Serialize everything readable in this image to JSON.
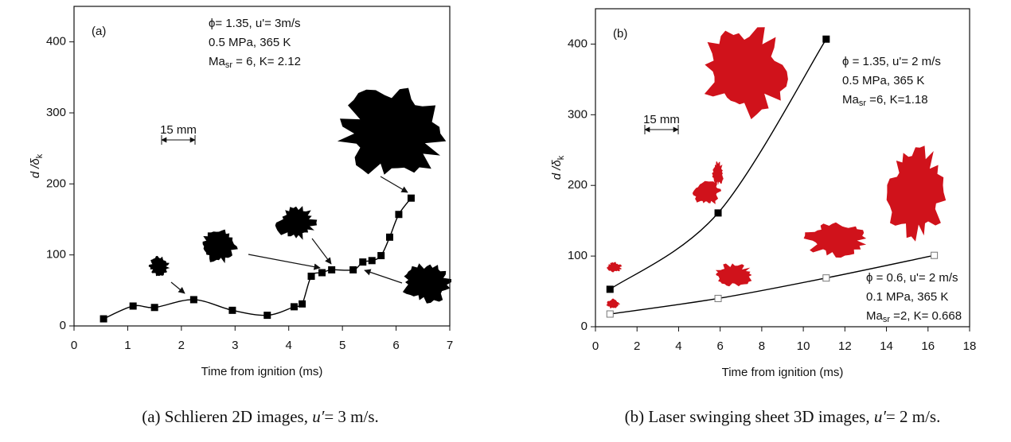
{
  "chart_data": [
    {
      "type": "line",
      "panel_label": "(a)",
      "xlabel": "Time from ignition (ms)",
      "ylabel": {
        "main": "d /δ",
        "sub": "k"
      },
      "xlim": [
        0,
        7
      ],
      "ylim": [
        0,
        450
      ],
      "xticks": [
        0,
        1,
        2,
        3,
        4,
        5,
        6,
        7
      ],
      "yticks": [
        0,
        100,
        200,
        300,
        400
      ],
      "x": [
        0.55,
        1.1,
        1.5,
        2.23,
        2.95,
        3.6,
        4.1,
        4.25,
        4.42,
        4.62,
        4.8,
        5.2,
        5.38,
        5.55,
        5.72,
        5.88,
        6.05,
        6.28
      ],
      "series": [
        {
          "color": "#000000",
          "marker": "filled-square",
          "values": [
            10,
            28,
            26,
            37,
            22,
            15,
            27,
            31,
            70,
            75,
            79,
            79,
            90,
            92,
            99,
            125,
            157,
            180
          ]
        }
      ],
      "scale_bar": "15 mm",
      "annotations": [
        {
          "lines": [
            "ϕ= 1.35, u'= 3m/s",
            "0.5 MPa, 365 K"
          ],
          "ma": {
            "base": "Ma",
            "sub": "sr",
            "rest": " = 6, K= 2.12"
          }
        }
      ]
    },
    {
      "type": "line",
      "panel_label": "(b)",
      "xlabel": "Time from ignition (ms)",
      "ylabel": {
        "main": "d /δ",
        "sub": "k"
      },
      "xlim": [
        0,
        18
      ],
      "ylim": [
        0,
        450
      ],
      "xticks": [
        0,
        2,
        4,
        6,
        8,
        10,
        12,
        14,
        16,
        18
      ],
      "yticks": [
        0,
        100,
        200,
        300,
        400
      ],
      "x": [
        0.7,
        5.9,
        11.1,
        16.3
      ],
      "series": [
        {
          "color": "#000000",
          "marker": "filled-square",
          "values": [
            53,
            161,
            407,
            null
          ]
        },
        {
          "color": "#000000",
          "marker": "open-square",
          "values": [
            18,
            40,
            69,
            101
          ]
        }
      ],
      "scale_bar": "15 mm",
      "annotations": [
        {
          "lines": [
            "ϕ = 1.35, u'= 2 m/s",
            "0.5 MPa, 365 K"
          ],
          "ma": {
            "base": "Ma",
            "sub": "sr",
            "rest": " =6, K=1.18"
          }
        },
        {
          "lines": [
            "ϕ = 0.6, u'= 2 m/s",
            "0.1 MPa, 365 K"
          ],
          "ma": {
            "base": "Ma",
            "sub": "sr",
            "rest": " =2, K= 0.668"
          }
        }
      ]
    }
  ],
  "captions": [
    {
      "prefix": "(a) Schlieren 2D images, ",
      "var": "u′",
      "suffix": "= 3 m/s."
    },
    {
      "prefix": "(b) Laser swinging sheet 3D images, ",
      "var": "u′",
      "suffix": "= 2 m/s."
    }
  ]
}
